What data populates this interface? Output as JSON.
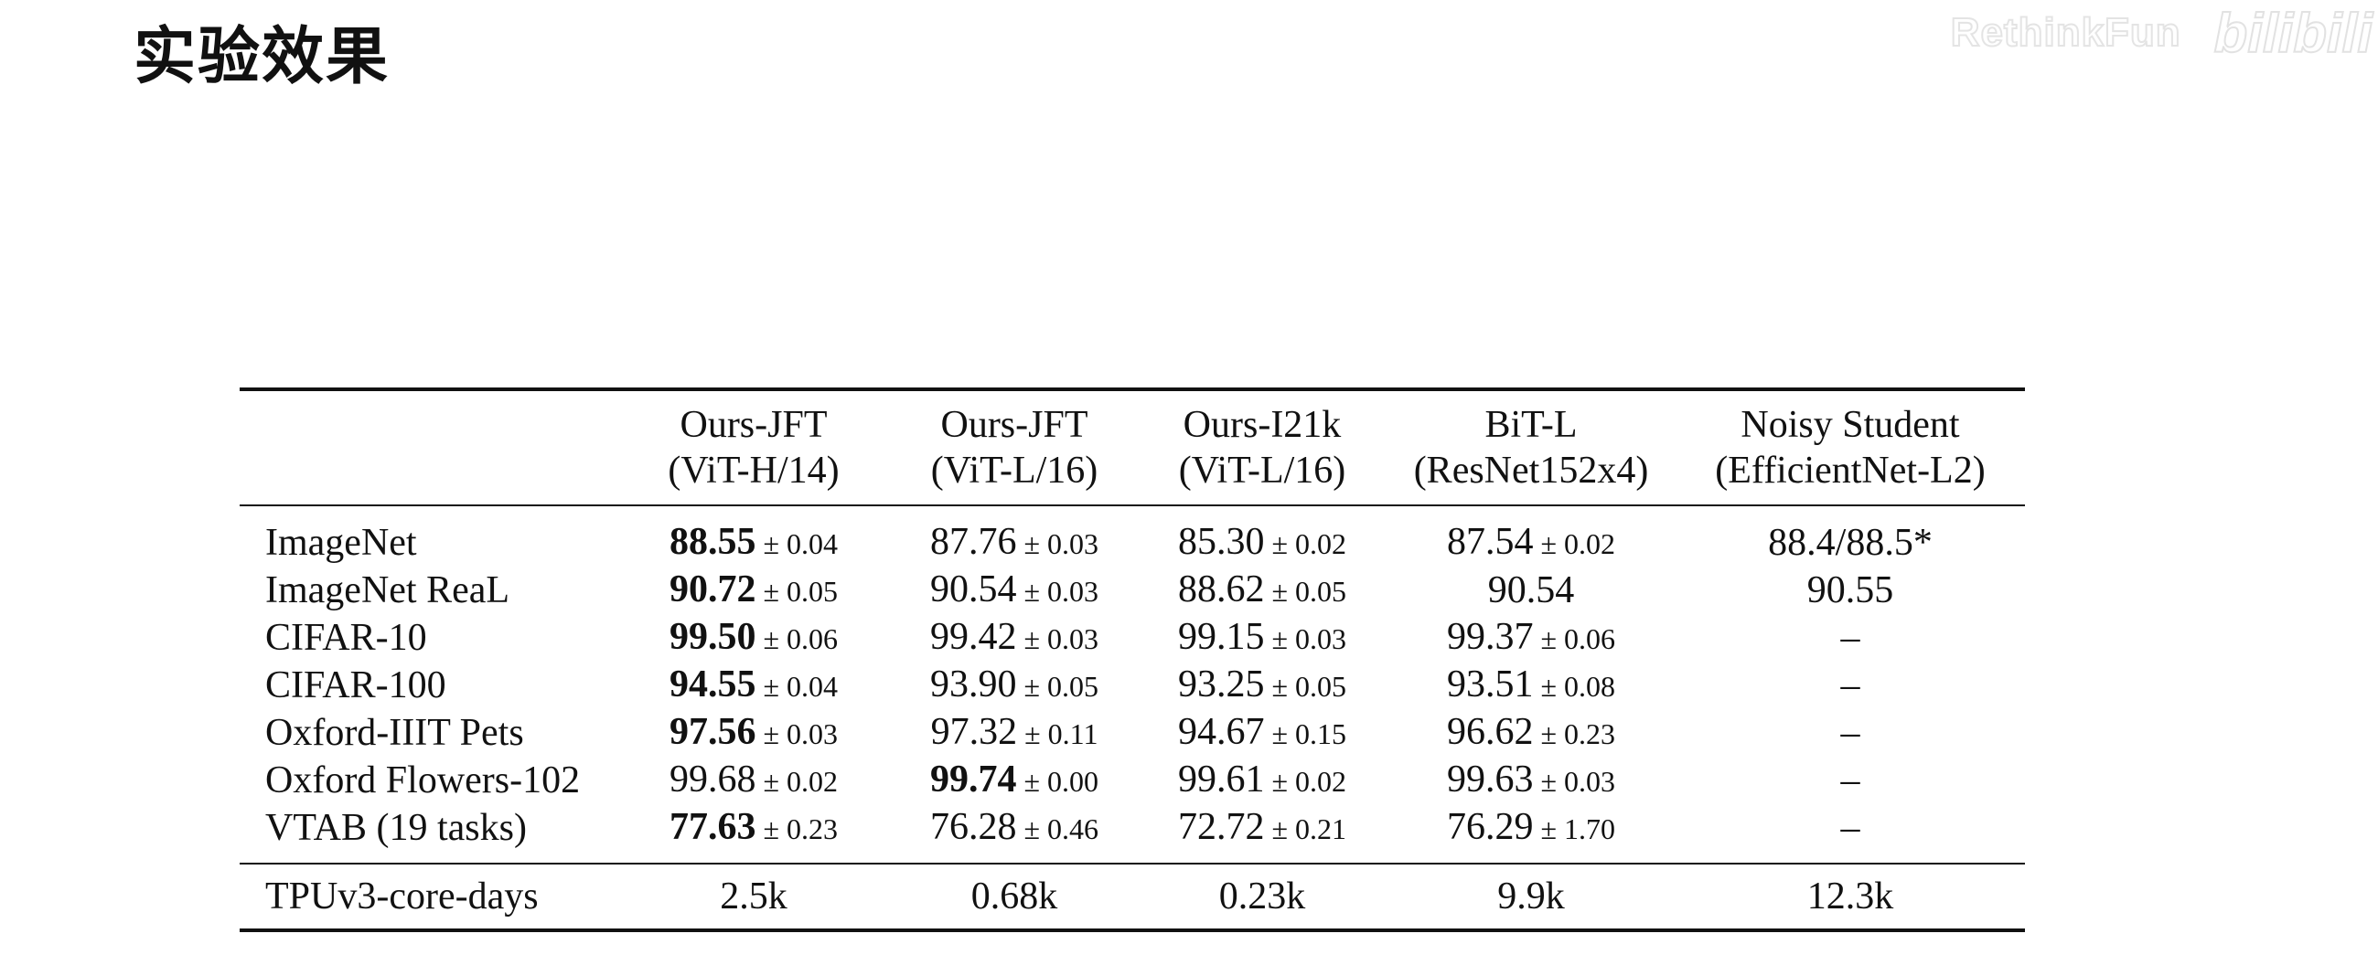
{
  "slide": {
    "title": "实验效果",
    "watermark_text": "RethinkFun",
    "watermark_logo": "bilibili"
  },
  "table": {
    "columns": [
      {
        "line1": "Ours-JFT",
        "line2": "(ViT-H/14)"
      },
      {
        "line1": "Ours-JFT",
        "line2": "(ViT-L/16)"
      },
      {
        "line1": "Ours-I21k",
        "line2": "(ViT-L/16)"
      },
      {
        "line1": "BiT-L",
        "line2": "(ResNet152x4)"
      },
      {
        "line1": "Noisy Student",
        "line2": "(EfficientNet-L2)"
      }
    ],
    "rows": [
      {
        "label": "ImageNet",
        "cells": [
          {
            "v": "88.55",
            "e": "± 0.04",
            "best": true
          },
          {
            "v": "87.76",
            "e": "± 0.03"
          },
          {
            "v": "85.30",
            "e": "± 0.02"
          },
          {
            "v": "87.54",
            "e": "± 0.02"
          },
          {
            "v": "88.4/88.5*",
            "e": ""
          }
        ]
      },
      {
        "label": "ImageNet ReaL",
        "cells": [
          {
            "v": "90.72",
            "e": "± 0.05",
            "best": true
          },
          {
            "v": "90.54",
            "e": "± 0.03"
          },
          {
            "v": "88.62",
            "e": "± 0.05"
          },
          {
            "v": "90.54",
            "e": ""
          },
          {
            "v": "90.55",
            "e": ""
          }
        ]
      },
      {
        "label": "CIFAR-10",
        "cells": [
          {
            "v": "99.50",
            "e": "± 0.06",
            "best": true
          },
          {
            "v": "99.42",
            "e": "± 0.03"
          },
          {
            "v": "99.15",
            "e": "± 0.03"
          },
          {
            "v": "99.37",
            "e": "± 0.06"
          },
          {
            "v": "–",
            "e": ""
          }
        ]
      },
      {
        "label": "CIFAR-100",
        "cells": [
          {
            "v": "94.55",
            "e": "± 0.04",
            "best": true
          },
          {
            "v": "93.90",
            "e": "± 0.05"
          },
          {
            "v": "93.25",
            "e": "± 0.05"
          },
          {
            "v": "93.51",
            "e": "± 0.08"
          },
          {
            "v": "–",
            "e": ""
          }
        ]
      },
      {
        "label": "Oxford-IIIT Pets",
        "cells": [
          {
            "v": "97.56",
            "e": "± 0.03",
            "best": true
          },
          {
            "v": "97.32",
            "e": "± 0.11"
          },
          {
            "v": "94.67",
            "e": "± 0.15"
          },
          {
            "v": "96.62",
            "e": "± 0.23"
          },
          {
            "v": "–",
            "e": ""
          }
        ]
      },
      {
        "label": "Oxford Flowers-102",
        "cells": [
          {
            "v": "99.68",
            "e": "± 0.02"
          },
          {
            "v": "99.74",
            "e": "± 0.00",
            "best": true
          },
          {
            "v": "99.61",
            "e": "± 0.02"
          },
          {
            "v": "99.63",
            "e": "± 0.03"
          },
          {
            "v": "–",
            "e": ""
          }
        ]
      },
      {
        "label": "VTAB (19 tasks)",
        "cells": [
          {
            "v": "77.63",
            "e": "± 0.23",
            "best": true
          },
          {
            "v": "76.28",
            "e": "± 0.46"
          },
          {
            "v": "72.72",
            "e": "± 0.21"
          },
          {
            "v": "76.29",
            "e": "± 1.70"
          },
          {
            "v": "–",
            "e": ""
          }
        ]
      }
    ],
    "footer": {
      "label": "TPUv3-core-days",
      "cells": [
        "2.5k",
        "0.68k",
        "0.23k",
        "9.9k",
        "12.3k"
      ]
    }
  }
}
